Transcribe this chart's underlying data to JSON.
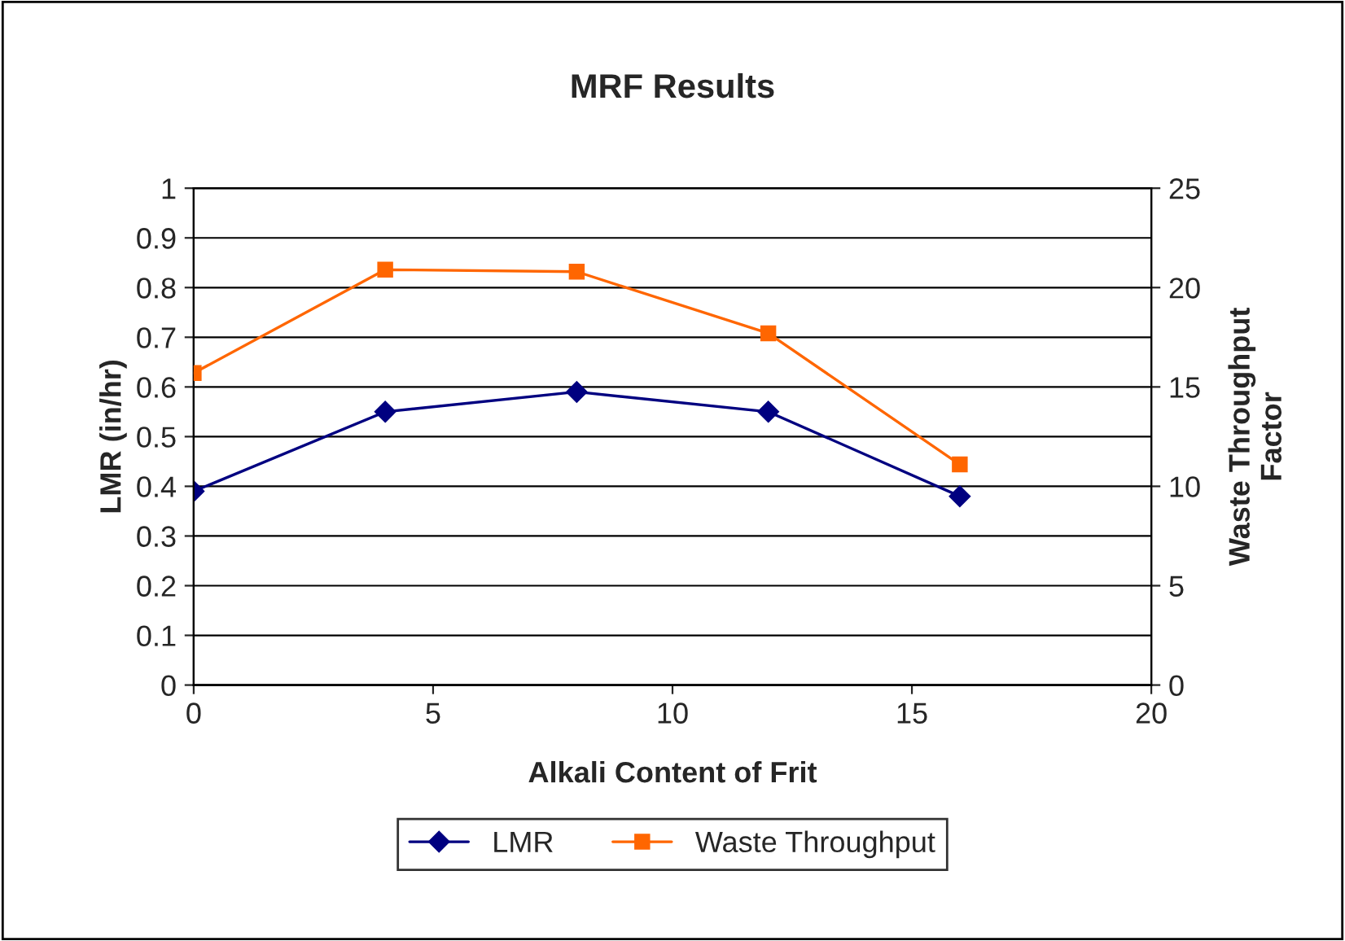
{
  "chart_data": {
    "type": "line",
    "title": "MRF Results",
    "xlabel": "Alkali Content of Frit",
    "ylabel": "LMR (in/hr)",
    "y2label": "Waste Throughput\nFactor",
    "x": [
      0,
      4,
      8,
      12,
      16
    ],
    "series": [
      {
        "name": "LMR",
        "color": "#000080",
        "values": [
          0.39,
          0.55,
          0.59,
          0.55,
          0.38
        ],
        "marker": "diamond"
      },
      {
        "name": "Waste Throughput",
        "color": "#ff6600",
        "values": [
          15.7,
          20.9,
          20.8,
          17.7,
          11.1
        ],
        "axis": "y2",
        "marker": "square"
      }
    ],
    "xlim": [
      0,
      20
    ],
    "xticks": [
      0,
      5,
      10,
      15,
      20
    ],
    "ylim": [
      0,
      1
    ],
    "yticks": [
      0,
      0.1,
      0.2,
      0.3,
      0.4,
      0.5,
      0.6,
      0.7,
      0.8,
      0.9,
      1
    ],
    "y2lim": [
      0,
      25
    ],
    "y2ticks": [
      0,
      5,
      10,
      15,
      20,
      25
    ],
    "grid": "y",
    "legend": "bottom"
  }
}
